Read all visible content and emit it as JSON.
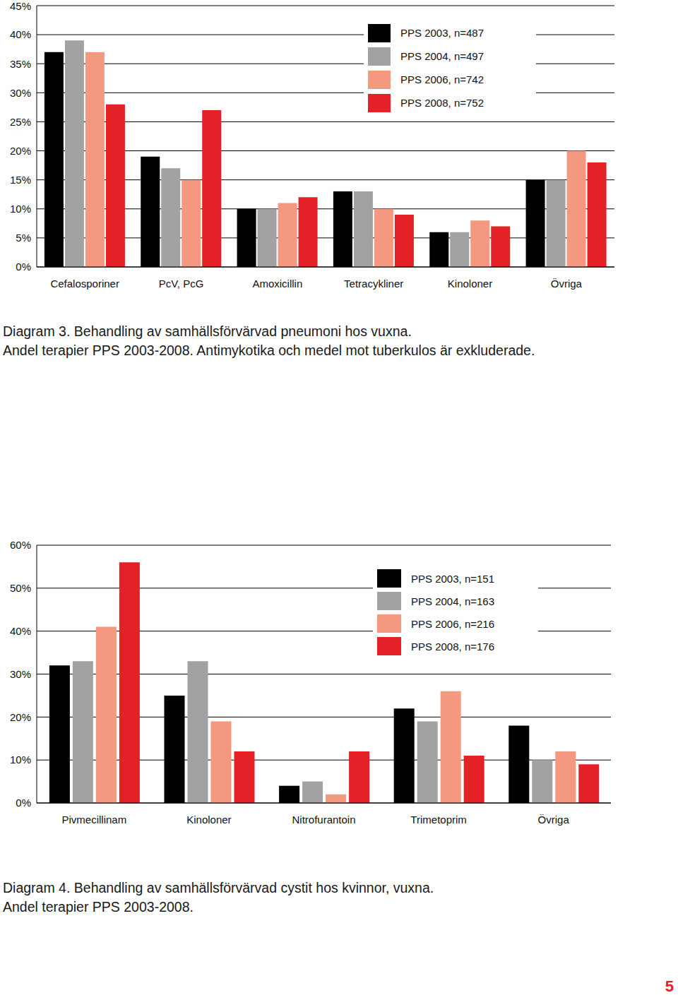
{
  "chart_data": [
    {
      "type": "bar",
      "title": "Diagram 3. Behandling av samhällsförvärvad pneumoni hos vuxna.",
      "subtitle": "Andel terapier PPS 2003-2008. Antimykotika och medel mot tuberkulos är exkluderade.",
      "categories": [
        "Cefalosporiner",
        "PcV, PcG",
        "Amoxicillin",
        "Tetracykliner",
        "Kinoloner",
        "Övriga"
      ],
      "series": [
        {
          "name": "PPS 2003, n=487",
          "color": "#000000",
          "values": [
            37,
            19,
            10,
            13,
            6,
            15
          ]
        },
        {
          "name": "PPS 2004, n=497",
          "color": "#a2a2a2",
          "values": [
            39,
            17,
            10,
            13,
            6,
            15
          ]
        },
        {
          "name": "PPS 2006, n=742",
          "color": "#f4997f",
          "values": [
            37,
            15,
            11,
            10,
            8,
            20
          ]
        },
        {
          "name": "PPS 2008, n=752",
          "color": "#e42127",
          "values": [
            28,
            27,
            12,
            9,
            7,
            18
          ]
        }
      ],
      "ylim": [
        0,
        45
      ],
      "yticks": [
        {
          "value": 0,
          "label": "0%"
        },
        {
          "value": 5,
          "label": "5%"
        },
        {
          "value": 10,
          "label": "10%"
        },
        {
          "value": 15,
          "label": "15%"
        },
        {
          "value": 20,
          "label": "20%"
        },
        {
          "value": 25,
          "label": "25%"
        },
        {
          "value": 30,
          "label": "30%"
        },
        {
          "value": 35,
          "label": "35%"
        },
        {
          "value": 40,
          "label": "40%"
        },
        {
          "value": 45,
          "label": "45%"
        }
      ],
      "grid": true,
      "legend": "top right"
    },
    {
      "type": "bar",
      "title": "Diagram 4. Behandling av samhällsförvärvad cystit hos kvinnor, vuxna.",
      "subtitle": "Andel terapier PPS 2003-2008.",
      "categories": [
        "Pivmecillinam",
        "Kinoloner",
        "Nitrofurantoin",
        "Trimetoprim",
        "Övriga"
      ],
      "series": [
        {
          "name": "PPS 2003, n=151",
          "color": "#000000",
          "values": [
            32,
            25,
            4,
            22,
            18
          ]
        },
        {
          "name": "PPS 2004, n=163",
          "color": "#a2a2a2",
          "values": [
            33,
            33,
            5,
            19,
            10
          ]
        },
        {
          "name": "PPS 2006, n=216",
          "color": "#f4997f",
          "values": [
            41,
            19,
            2,
            26,
            12
          ]
        },
        {
          "name": "PPS 2008, n=176",
          "color": "#e42127",
          "values": [
            56,
            12,
            12,
            11,
            9
          ]
        }
      ],
      "ylim": [
        0,
        60
      ],
      "yticks": [
        {
          "value": 0,
          "label": "0%"
        },
        {
          "value": 10,
          "label": "10%"
        },
        {
          "value": 20,
          "label": "20%"
        },
        {
          "value": 30,
          "label": "30%"
        },
        {
          "value": 40,
          "label": "40%"
        },
        {
          "value": 50,
          "label": "50%"
        },
        {
          "value": 60,
          "label": "60%"
        }
      ],
      "grid": true,
      "legend": "top right"
    }
  ],
  "page_number": "5"
}
